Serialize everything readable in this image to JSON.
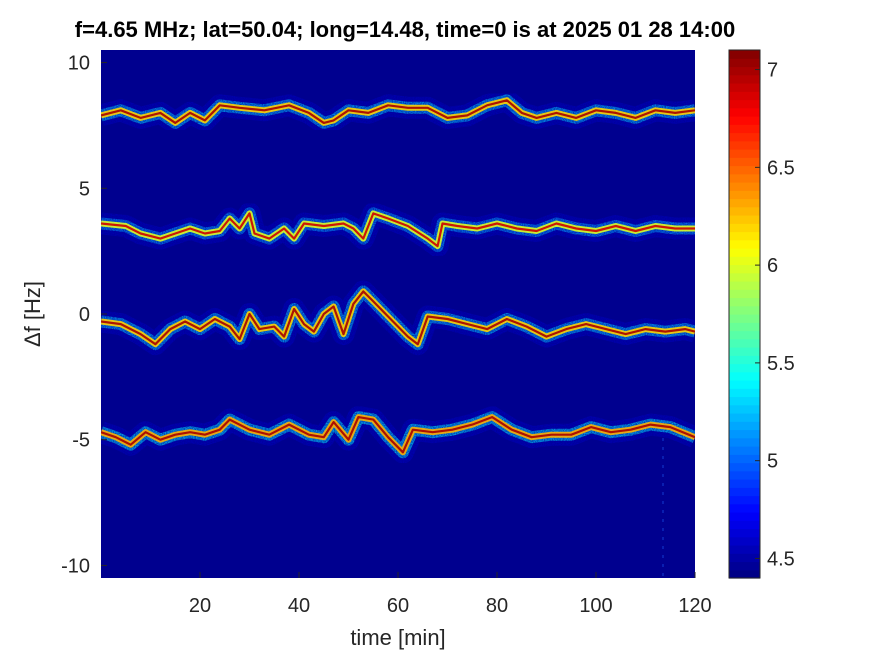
{
  "chart_data": {
    "type": "heatmap",
    "title": "f=4.65 MHz;  lat=50.04; long=14.48, time=0 is at 2025 01 28 14:00",
    "xlabel": "time [min]",
    "ylabel": "Δf [Hz]",
    "xlim": [
      0,
      120
    ],
    "ylim": [
      -10.5,
      10.5
    ],
    "xticks": [
      20,
      40,
      60,
      80,
      100,
      120
    ],
    "yticks": [
      -10,
      -5,
      0,
      5,
      10
    ],
    "xtick_labels": [
      "20",
      "40",
      "60",
      "80",
      "100",
      "120"
    ],
    "ytick_labels": [
      "-10",
      "-5",
      "0",
      "5",
      "10"
    ],
    "colorbar": {
      "range": [
        4.4,
        7.1
      ],
      "ticks": [
        4.5,
        5,
        5.5,
        6,
        6.5,
        7
      ],
      "tick_labels": [
        "4.5",
        "5",
        "5.5",
        "6",
        "6.5",
        "7"
      ],
      "colormap": "jet"
    },
    "background_value": 4.45,
    "background_color": "#00008f",
    "traces": [
      {
        "points": [
          [
            0,
            7.9
          ],
          [
            4,
            8.1
          ],
          [
            8,
            7.8
          ],
          [
            12,
            8.0
          ],
          [
            15,
            7.6
          ],
          [
            18,
            8.0
          ],
          [
            21,
            7.7
          ],
          [
            24,
            8.3
          ],
          [
            28,
            8.2
          ],
          [
            33,
            8.1
          ],
          [
            38,
            8.3
          ],
          [
            42,
            8.0
          ],
          [
            45,
            7.6
          ],
          [
            47,
            7.7
          ],
          [
            50,
            8.1
          ],
          [
            54,
            8.0
          ],
          [
            58,
            8.3
          ],
          [
            62,
            8.2
          ],
          [
            66,
            8.2
          ],
          [
            70,
            7.8
          ],
          [
            74,
            7.9
          ],
          [
            78,
            8.3
          ],
          [
            82,
            8.5
          ],
          [
            85,
            8.0
          ],
          [
            88,
            7.8
          ],
          [
            92,
            8.0
          ],
          [
            96,
            7.8
          ],
          [
            100,
            8.1
          ],
          [
            104,
            8.0
          ],
          [
            108,
            7.8
          ],
          [
            112,
            8.1
          ],
          [
            116,
            8.0
          ],
          [
            120,
            8.1
          ]
        ],
        "intensity": [
          5.3,
          6.2,
          7.0
        ]
      },
      {
        "points": [
          [
            0,
            3.6
          ],
          [
            5,
            3.5
          ],
          [
            8,
            3.2
          ],
          [
            12,
            3.0
          ],
          [
            15,
            3.2
          ],
          [
            18,
            3.4
          ],
          [
            21,
            3.2
          ],
          [
            24,
            3.3
          ],
          [
            26,
            3.8
          ],
          [
            28,
            3.4
          ],
          [
            30,
            4.0
          ],
          [
            31,
            3.2
          ],
          [
            34,
            3.0
          ],
          [
            37,
            3.4
          ],
          [
            39,
            3.0
          ],
          [
            41,
            3.6
          ],
          [
            45,
            3.5
          ],
          [
            49,
            3.6
          ],
          [
            51,
            3.4
          ],
          [
            53,
            3.0
          ],
          [
            55,
            4.0
          ],
          [
            58,
            3.8
          ],
          [
            62,
            3.5
          ],
          [
            66,
            3.0
          ],
          [
            68,
            2.7
          ],
          [
            69,
            3.6
          ],
          [
            72,
            3.5
          ],
          [
            76,
            3.4
          ],
          [
            80,
            3.6
          ],
          [
            84,
            3.4
          ],
          [
            88,
            3.3
          ],
          [
            92,
            3.6
          ],
          [
            96,
            3.4
          ],
          [
            100,
            3.3
          ],
          [
            104,
            3.5
          ],
          [
            108,
            3.3
          ],
          [
            112,
            3.5
          ],
          [
            116,
            3.4
          ],
          [
            120,
            3.4
          ]
        ],
        "intensity": [
          5.2,
          6.0,
          6.9
        ]
      },
      {
        "points": [
          [
            0,
            -0.3
          ],
          [
            4,
            -0.4
          ],
          [
            8,
            -0.8
          ],
          [
            11,
            -1.2
          ],
          [
            14,
            -0.6
          ],
          [
            17,
            -0.3
          ],
          [
            20,
            -0.6
          ],
          [
            23,
            -0.2
          ],
          [
            26,
            -0.5
          ],
          [
            28,
            -1.0
          ],
          [
            30,
            0.0
          ],
          [
            32,
            -0.6
          ],
          [
            35,
            -0.5
          ],
          [
            37,
            -0.9
          ],
          [
            39,
            0.2
          ],
          [
            41,
            -0.4
          ],
          [
            43,
            -0.7
          ],
          [
            45,
            0.0
          ],
          [
            47,
            0.3
          ],
          [
            49,
            -0.8
          ],
          [
            51,
            0.4
          ],
          [
            53,
            0.9
          ],
          [
            55,
            0.5
          ],
          [
            58,
            -0.1
          ],
          [
            62,
            -0.9
          ],
          [
            64,
            -1.2
          ],
          [
            66,
            -0.1
          ],
          [
            70,
            -0.2
          ],
          [
            74,
            -0.4
          ],
          [
            78,
            -0.6
          ],
          [
            82,
            -0.2
          ],
          [
            86,
            -0.5
          ],
          [
            90,
            -0.9
          ],
          [
            94,
            -0.6
          ],
          [
            98,
            -0.4
          ],
          [
            102,
            -0.6
          ],
          [
            106,
            -0.8
          ],
          [
            110,
            -0.6
          ],
          [
            114,
            -0.7
          ],
          [
            118,
            -0.6
          ],
          [
            120,
            -0.7
          ]
        ],
        "intensity": [
          5.3,
          6.2,
          7.0
        ]
      },
      {
        "points": [
          [
            0,
            -4.7
          ],
          [
            3,
            -4.9
          ],
          [
            6,
            -5.2
          ],
          [
            9,
            -4.7
          ],
          [
            12,
            -5.0
          ],
          [
            15,
            -4.8
          ],
          [
            18,
            -4.7
          ],
          [
            21,
            -4.8
          ],
          [
            24,
            -4.6
          ],
          [
            26,
            -4.2
          ],
          [
            30,
            -4.6
          ],
          [
            34,
            -4.8
          ],
          [
            38,
            -4.4
          ],
          [
            42,
            -4.8
          ],
          [
            45,
            -4.9
          ],
          [
            47,
            -4.3
          ],
          [
            50,
            -5.0
          ],
          [
            52,
            -4.1
          ],
          [
            55,
            -4.2
          ],
          [
            58,
            -4.9
          ],
          [
            61,
            -5.5
          ],
          [
            63,
            -4.6
          ],
          [
            67,
            -4.7
          ],
          [
            71,
            -4.6
          ],
          [
            75,
            -4.4
          ],
          [
            79,
            -4.1
          ],
          [
            83,
            -4.6
          ],
          [
            87,
            -4.9
          ],
          [
            91,
            -4.8
          ],
          [
            95,
            -4.8
          ],
          [
            99,
            -4.5
          ],
          [
            103,
            -4.7
          ],
          [
            107,
            -4.6
          ],
          [
            111,
            -4.4
          ],
          [
            115,
            -4.5
          ],
          [
            120,
            -4.9
          ]
        ],
        "intensity": [
          5.4,
          6.3,
          7.0
        ]
      }
    ]
  }
}
